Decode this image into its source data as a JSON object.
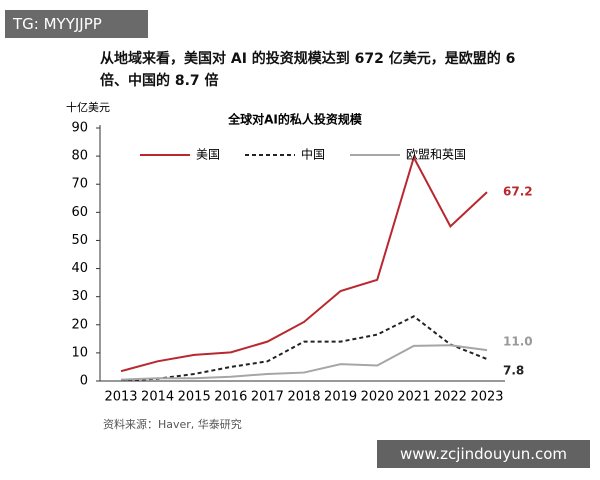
{
  "overlay_tag": "TG: MYYJJPP",
  "header": "从地域来看，美国对 AI 的投资规模达到 672 亿美元，是欧盟的 6 倍、中国的 8.7 倍",
  "chart_data": {
    "type": "line",
    "title": "全球对AI的私人投资规模",
    "y_unit": "十亿美元",
    "categories": [
      "2013",
      "2014",
      "2015",
      "2016",
      "2017",
      "2018",
      "2019",
      "2020",
      "2021",
      "2022",
      "2023"
    ],
    "series": [
      {
        "name": "美国",
        "color": "#b8282e",
        "dash": "solid",
        "values": [
          3.5,
          7,
          9.3,
          10.2,
          14,
          21,
          32,
          36,
          79.5,
          55,
          67.2
        ],
        "value_labels": [
          null,
          null,
          null,
          null,
          null,
          null,
          null,
          null,
          null,
          null,
          "67.2"
        ]
      },
      {
        "name": "中国",
        "color": "#222222",
        "dash": "dashed",
        "values": [
          0.3,
          0.8,
          2.5,
          5,
          7,
          14,
          14,
          16.5,
          23,
          13,
          7.8
        ],
        "value_labels": [
          null,
          null,
          null,
          null,
          null,
          null,
          null,
          null,
          null,
          null,
          "7.8"
        ]
      },
      {
        "name": "欧盟和英国",
        "color": "#a6a6a6",
        "dash": "solid",
        "values": [
          0.5,
          1,
          1,
          1.5,
          2.5,
          3,
          6,
          5.5,
          12.5,
          12.7,
          11
        ],
        "value_labels": [
          null,
          null,
          null,
          null,
          null,
          null,
          null,
          null,
          null,
          null,
          "11.0"
        ]
      }
    ],
    "ylim": [
      0,
      90
    ],
    "yticks": [
      0,
      10,
      20,
      30,
      40,
      50,
      60,
      70,
      80,
      90
    ],
    "grid": false,
    "source": "资料来源：Haver, 华泰研究"
  },
  "watermark": "www.zcjindouyun.com"
}
